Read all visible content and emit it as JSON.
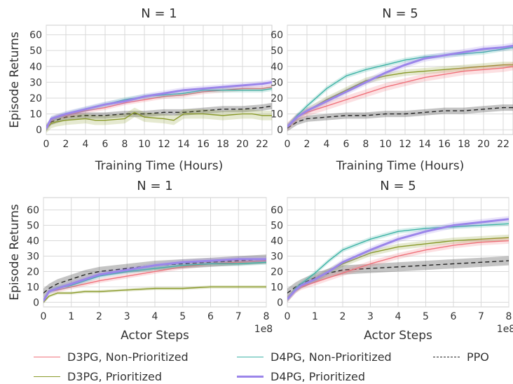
{
  "colors": {
    "d3pg_np": "#f0707a",
    "d3pg_p": "#8a9a2a",
    "d4pg_np": "#3cb3a5",
    "d4pg_p": "#9b85ea",
    "ppo": "#222222"
  },
  "legend": [
    {
      "key": "d3pg_np",
      "label": "D3PG, Non-Prioritized"
    },
    {
      "key": "d4pg_np",
      "label": "D4PG, Non-Prioritized"
    },
    {
      "key": "ppo",
      "label": "PPO"
    },
    {
      "key": "d3pg_p",
      "label": "D3PG, Prioritized"
    },
    {
      "key": "d4pg_p",
      "label": "D4PG, Prioritized"
    }
  ],
  "chart_data": [
    {
      "type": "line",
      "title": "N = 1",
      "xlabel": "Training Time (Hours)",
      "ylabel": "Episode Returns",
      "xlim": [
        0,
        23
      ],
      "ylim": [
        -3,
        66
      ],
      "xticks": [
        0,
        2,
        4,
        6,
        8,
        10,
        12,
        14,
        16,
        18,
        20,
        22
      ],
      "yticks": [
        0,
        10,
        20,
        30,
        40,
        50,
        60
      ],
      "x_multiplier": "",
      "grid": true,
      "series": [
        {
          "key": "d3pg_np",
          "name": "D3PG, Non-Prioritized",
          "x": [
            0,
            0.5,
            1,
            2,
            4,
            6,
            8,
            10,
            12,
            14,
            16,
            18,
            20,
            22,
            23
          ],
          "y": [
            1,
            6,
            8,
            9,
            12,
            14,
            17,
            19,
            21,
            22,
            24,
            25,
            26,
            26,
            27
          ],
          "band": 1.5
        },
        {
          "key": "d3pg_p",
          "name": "D3PG, Prioritized",
          "x": [
            0,
            0.5,
            1,
            2,
            4,
            5,
            6,
            8,
            9,
            10,
            12,
            13,
            14,
            16,
            18,
            20,
            21,
            22,
            23
          ],
          "y": [
            1,
            4,
            5,
            6,
            7,
            6,
            6,
            7,
            11,
            8,
            7,
            6,
            10,
            10,
            9,
            10,
            10,
            9,
            9
          ],
          "band": 3
        },
        {
          "key": "d4pg_np",
          "name": "D4PG, Non-Prioritized",
          "x": [
            0,
            0.5,
            1,
            2,
            4,
            6,
            8,
            10,
            12,
            14,
            16,
            18,
            20,
            22,
            23
          ],
          "y": [
            1,
            7,
            8,
            10,
            13,
            16,
            19,
            21,
            22,
            23,
            25,
            25,
            25,
            25,
            26
          ],
          "band": 1.5
        },
        {
          "key": "d4pg_p",
          "name": "D4PG, Prioritized",
          "x": [
            0,
            0.5,
            1,
            2,
            4,
            6,
            8,
            10,
            12,
            14,
            16,
            18,
            20,
            22,
            23
          ],
          "y": [
            1,
            7,
            8,
            10,
            13,
            16,
            18,
            21,
            23,
            25,
            26,
            27,
            28,
            29,
            30
          ],
          "band": 1.8
        },
        {
          "key": "ppo",
          "name": "PPO",
          "x": [
            0,
            0.5,
            1,
            2,
            4,
            6,
            8,
            10,
            12,
            14,
            16,
            18,
            20,
            22,
            23
          ],
          "y": [
            1,
            5,
            6,
            8,
            9,
            9,
            10,
            10,
            11,
            11,
            12,
            13,
            13,
            14,
            15
          ],
          "band": 2
        }
      ]
    },
    {
      "type": "line",
      "title": "N = 5",
      "xlabel": "Training Time (Hours)",
      "ylabel": "",
      "xlim": [
        0,
        23
      ],
      "ylim": [
        -3,
        66
      ],
      "xticks": [
        0,
        2,
        4,
        6,
        8,
        10,
        12,
        14,
        16,
        18,
        20,
        22
      ],
      "yticks": [
        0,
        10,
        20,
        30,
        40,
        50,
        60
      ],
      "x_multiplier": "",
      "grid": true,
      "series": [
        {
          "key": "d3pg_np",
          "name": "D3PG, Non-Prioritized",
          "x": [
            0,
            1,
            2,
            4,
            6,
            8,
            10,
            12,
            14,
            16,
            18,
            20,
            22,
            23
          ],
          "y": [
            2,
            8,
            11,
            15,
            19,
            23,
            27,
            30,
            33,
            35,
            37,
            38,
            39,
            40
          ],
          "band": 2.5
        },
        {
          "key": "d3pg_p",
          "name": "D3PG, Prioritized",
          "x": [
            0,
            1,
            2,
            4,
            6,
            8,
            10,
            12,
            14,
            16,
            18,
            20,
            22,
            23
          ],
          "y": [
            2,
            8,
            12,
            19,
            25,
            31,
            34,
            36,
            37,
            38,
            39,
            40,
            41,
            41
          ],
          "band": 2
        },
        {
          "key": "d4pg_np",
          "name": "D4PG, Non-Prioritized",
          "x": [
            0,
            1,
            2,
            4,
            6,
            8,
            10,
            12,
            14,
            16,
            18,
            20,
            22,
            23
          ],
          "y": [
            2,
            9,
            15,
            26,
            34,
            38,
            41,
            44,
            46,
            47,
            48,
            49,
            51,
            52
          ],
          "band": 1.5
        },
        {
          "key": "d4pg_p",
          "name": "D4PG, Prioritized",
          "x": [
            0,
            1,
            2,
            4,
            6,
            8,
            10,
            12,
            14,
            16,
            18,
            20,
            22,
            23
          ],
          "y": [
            2,
            8,
            12,
            18,
            24,
            30,
            36,
            41,
            45,
            47,
            49,
            51,
            52,
            53
          ],
          "band": 2
        },
        {
          "key": "ppo",
          "name": "PPO",
          "x": [
            0,
            1,
            2,
            4,
            6,
            8,
            10,
            12,
            14,
            16,
            18,
            20,
            22,
            23
          ],
          "y": [
            1,
            5,
            7,
            8,
            9,
            9,
            10,
            10,
            11,
            12,
            12,
            13,
            14,
            14
          ],
          "band": 2
        }
      ]
    },
    {
      "type": "line",
      "title": "N = 1",
      "xlabel": "Actor Steps",
      "ylabel": "Episode Returns",
      "xlim": [
        0,
        8
      ],
      "ylim": [
        -3,
        68
      ],
      "xticks": [
        0,
        1,
        2,
        3,
        4,
        5,
        6,
        7,
        8
      ],
      "yticks": [
        0,
        10,
        20,
        30,
        40,
        50,
        60
      ],
      "x_multiplier": "1e8",
      "grid": true,
      "series": [
        {
          "key": "d3pg_np",
          "name": "D3PG, Non-Prioritized",
          "x": [
            0,
            0.2,
            0.5,
            1,
            1.5,
            2,
            3,
            4,
            5,
            6,
            7,
            8
          ],
          "y": [
            1,
            7,
            8,
            10,
            12,
            14,
            17,
            20,
            23,
            25,
            26,
            27
          ],
          "band": 1.5
        },
        {
          "key": "d3pg_p",
          "name": "D3PG, Prioritized",
          "x": [
            0,
            0.2,
            0.5,
            1,
            1.5,
            2,
            3,
            4,
            5,
            6,
            7,
            8
          ],
          "y": [
            0,
            4,
            6,
            6,
            7,
            7,
            8,
            9,
            9,
            10,
            10,
            10
          ],
          "band": 1
        },
        {
          "key": "d4pg_np",
          "name": "D4PG, Non-Prioritized",
          "x": [
            0,
            0.2,
            0.5,
            1,
            1.5,
            2,
            3,
            4,
            5,
            6,
            7,
            8
          ],
          "y": [
            1,
            7,
            9,
            11,
            14,
            17,
            20,
            22,
            24,
            25,
            25,
            26
          ],
          "band": 1.5
        },
        {
          "key": "d4pg_p",
          "name": "D4PG, Prioritized",
          "x": [
            0,
            0.2,
            0.5,
            1,
            1.5,
            2,
            3,
            4,
            5,
            6,
            7,
            8
          ],
          "y": [
            1,
            7,
            9,
            12,
            15,
            18,
            21,
            24,
            26,
            27,
            28,
            28
          ],
          "band": 1.8
        },
        {
          "key": "ppo",
          "name": "PPO",
          "x": [
            0,
            0.2,
            0.5,
            1,
            1.5,
            2,
            3,
            4,
            5,
            6,
            7,
            8
          ],
          "y": [
            6,
            9,
            12,
            15,
            18,
            20,
            22,
            24,
            25,
            26,
            27,
            28
          ],
          "band": 3
        }
      ]
    },
    {
      "type": "line",
      "title": "N = 5",
      "xlabel": "Actor Steps",
      "ylabel": "",
      "xlim": [
        0,
        8
      ],
      "ylim": [
        -3,
        68
      ],
      "xticks": [
        0,
        1,
        2,
        3,
        4,
        5,
        6,
        7,
        8
      ],
      "yticks": [
        0,
        10,
        20,
        30,
        40,
        50,
        60
      ],
      "x_multiplier": "1e8",
      "grid": true,
      "series": [
        {
          "key": "d3pg_np",
          "name": "D3PG, Non-Prioritized",
          "x": [
            0,
            0.3,
            0.5,
            1,
            1.5,
            2,
            3,
            4,
            5,
            6,
            7,
            8
          ],
          "y": [
            2,
            8,
            10,
            13,
            16,
            19,
            25,
            30,
            34,
            37,
            39,
            40
          ],
          "band": 2
        },
        {
          "key": "d3pg_p",
          "name": "D3PG, Prioritized",
          "x": [
            0,
            0.3,
            0.5,
            1,
            1.5,
            2,
            3,
            4,
            5,
            6,
            7,
            8
          ],
          "y": [
            2,
            8,
            11,
            15,
            20,
            25,
            32,
            36,
            38,
            40,
            41,
            42
          ],
          "band": 2
        },
        {
          "key": "d4pg_np",
          "name": "D4PG, Non-Prioritized",
          "x": [
            0,
            0.3,
            0.5,
            1,
            1.5,
            2,
            3,
            4,
            5,
            6,
            7,
            8
          ],
          "y": [
            2,
            9,
            12,
            19,
            27,
            34,
            41,
            46,
            48,
            49,
            50,
            51
          ],
          "band": 1.5
        },
        {
          "key": "d4pg_p",
          "name": "D4PG, Prioritized",
          "x": [
            0,
            0.3,
            0.5,
            1,
            1.5,
            2,
            3,
            4,
            5,
            6,
            7,
            8
          ],
          "y": [
            2,
            8,
            11,
            15,
            20,
            26,
            34,
            41,
            46,
            50,
            52,
            54
          ],
          "band": 2
        },
        {
          "key": "ppo",
          "name": "PPO",
          "x": [
            0,
            0.3,
            0.5,
            1,
            1.5,
            2,
            3,
            4,
            5,
            6,
            7,
            8
          ],
          "y": [
            6,
            10,
            12,
            16,
            19,
            21,
            22,
            23,
            24,
            25,
            26,
            27
          ],
          "band": 3
        }
      ]
    }
  ]
}
